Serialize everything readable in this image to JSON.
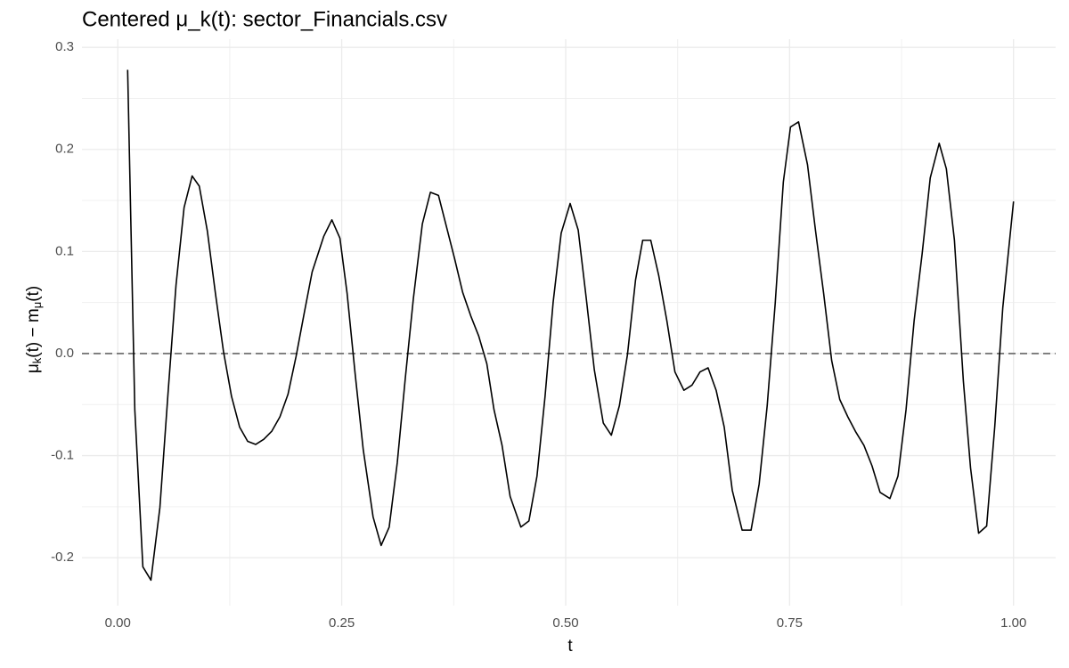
{
  "chart_data": {
    "type": "line",
    "title": "Centered μ_k(t): sector_Financials.csv",
    "xlabel": "t",
    "ylabel": [
      "μ",
      "k",
      "(t) − m",
      "μ",
      "(t)"
    ],
    "x": [
      0.011,
      0.019,
      0.028,
      0.037,
      0.047,
      0.056,
      0.065,
      0.074,
      0.083,
      0.091,
      0.1,
      0.109,
      0.118,
      0.127,
      0.136,
      0.145,
      0.154,
      0.163,
      0.172,
      0.181,
      0.19,
      0.199,
      0.208,
      0.217,
      0.23,
      0.239,
      0.248,
      0.256,
      0.265,
      0.274,
      0.285,
      0.294,
      0.303,
      0.312,
      0.321,
      0.33,
      0.34,
      0.349,
      0.358,
      0.367,
      0.376,
      0.385,
      0.394,
      0.403,
      0.412,
      0.42,
      0.429,
      0.438,
      0.45,
      0.459,
      0.468,
      0.477,
      0.486,
      0.495,
      0.505,
      0.514,
      0.523,
      0.532,
      0.542,
      0.551,
      0.56,
      0.569,
      0.578,
      0.586,
      0.595,
      0.604,
      0.613,
      0.622,
      0.632,
      0.641,
      0.65,
      0.659,
      0.668,
      0.677,
      0.686,
      0.697,
      0.707,
      0.716,
      0.725,
      0.734,
      0.743,
      0.751,
      0.76,
      0.77,
      0.779,
      0.788,
      0.797,
      0.806,
      0.815,
      0.824,
      0.833,
      0.842,
      0.851,
      0.862,
      0.871,
      0.88,
      0.889,
      0.898,
      0.907,
      0.917,
      0.925,
      0.934,
      0.944,
      0.952,
      0.961,
      0.97,
      0.979,
      0.988,
      1.0
    ],
    "series": [
      {
        "color": "#000000",
        "values": [
          0.278,
          -0.055,
          -0.209,
          -0.222,
          -0.151,
          -0.04,
          0.067,
          0.143,
          0.174,
          0.164,
          0.12,
          0.059,
          0.002,
          -0.042,
          -0.072,
          -0.086,
          -0.089,
          -0.084,
          -0.076,
          -0.062,
          -0.04,
          -0.003,
          0.039,
          0.08,
          0.115,
          0.131,
          0.113,
          0.059,
          -0.02,
          -0.094,
          -0.16,
          -0.188,
          -0.17,
          -0.107,
          -0.024,
          0.054,
          0.127,
          0.158,
          0.155,
          0.124,
          0.093,
          0.06,
          0.037,
          0.017,
          -0.01,
          -0.055,
          -0.09,
          -0.14,
          -0.17,
          -0.164,
          -0.12,
          -0.042,
          0.05,
          0.118,
          0.147,
          0.121,
          0.054,
          -0.016,
          -0.068,
          -0.08,
          -0.051,
          -0.001,
          0.072,
          0.111,
          0.111,
          0.076,
          0.032,
          -0.018,
          -0.036,
          -0.031,
          -0.018,
          -0.014,
          -0.036,
          -0.072,
          -0.134,
          -0.173,
          -0.173,
          -0.128,
          -0.051,
          0.05,
          0.168,
          0.222,
          0.227,
          0.185,
          0.12,
          0.059,
          -0.007,
          -0.045,
          -0.062,
          -0.077,
          -0.09,
          -0.11,
          -0.136,
          -0.142,
          -0.12,
          -0.055,
          0.032,
          0.098,
          0.172,
          0.206,
          0.181,
          0.111,
          -0.027,
          -0.112,
          -0.176,
          -0.169,
          -0.072,
          0.045,
          0.149
        ]
      }
    ],
    "hline": 0,
    "xlim": [
      -0.04,
      1.047
    ],
    "ylim": [
      -0.247,
      0.308
    ],
    "xticks": [
      {
        "value": 0,
        "label": "0.00"
      },
      {
        "value": 0.25,
        "label": "0.25"
      },
      {
        "value": 0.5,
        "label": "0.50"
      },
      {
        "value": 0.75,
        "label": "0.75"
      },
      {
        "value": 1,
        "label": "1.00"
      }
    ],
    "yticks": [
      -0.2,
      -0.1,
      {
        "value": 0,
        "label": "0.0"
      },
      0.1,
      0.2,
      0.3
    ],
    "grid": true
  }
}
